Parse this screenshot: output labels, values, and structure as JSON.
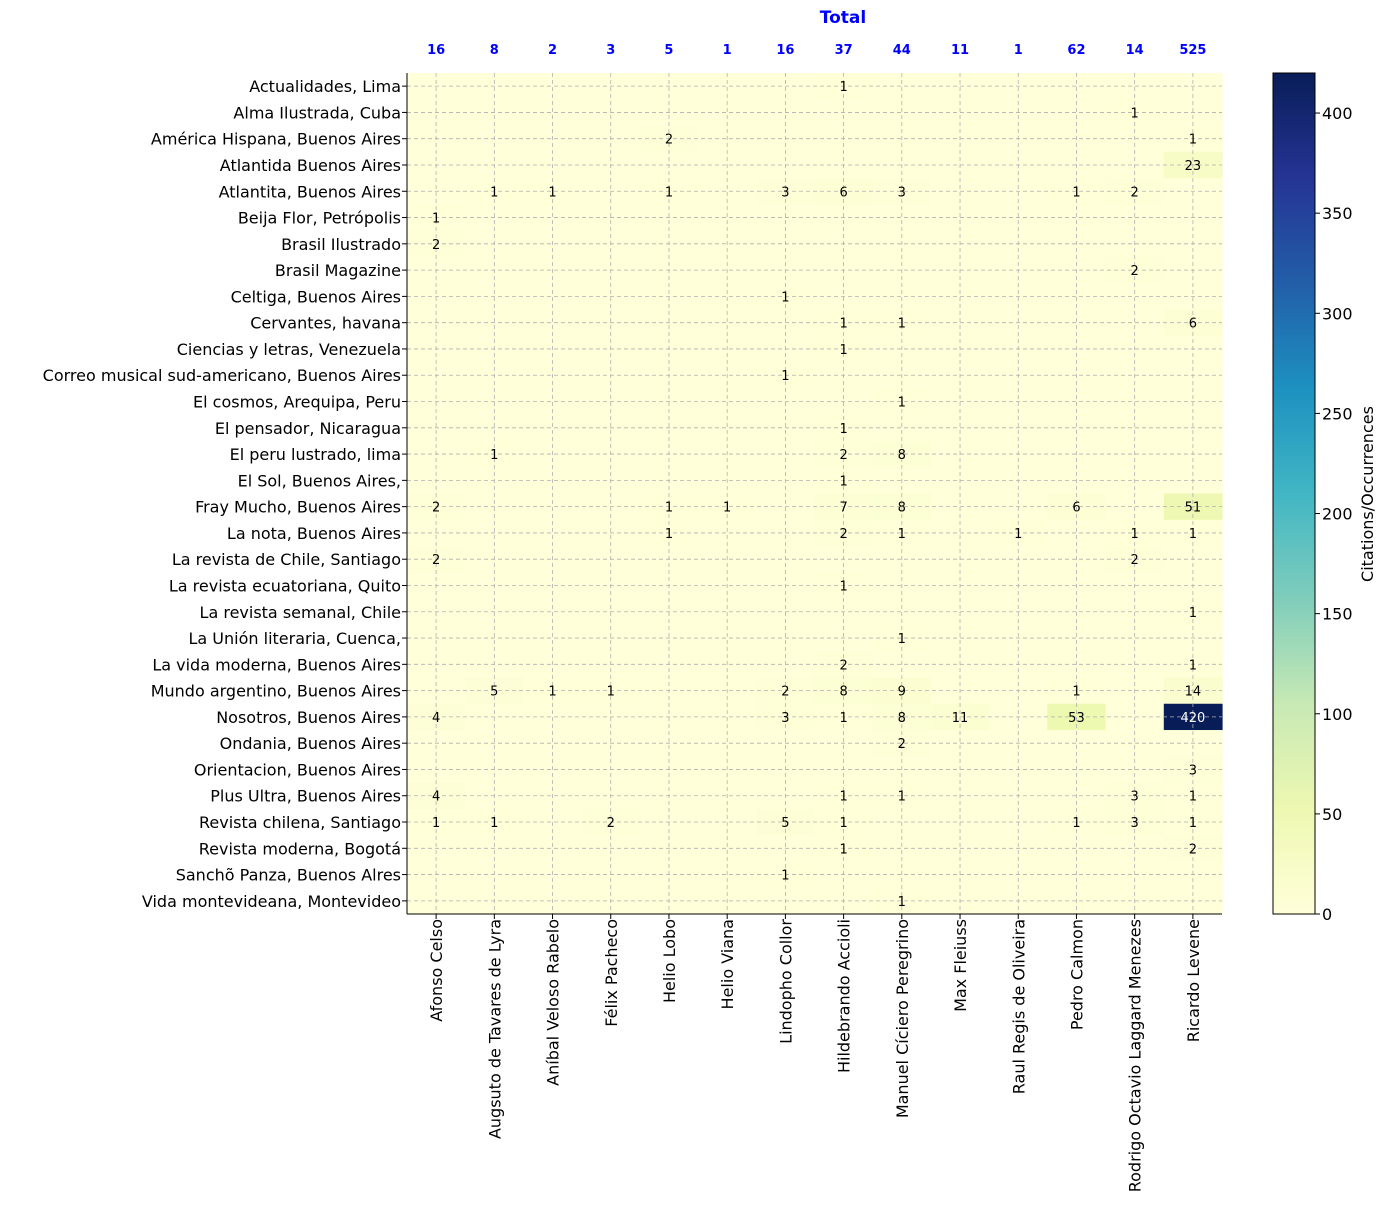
{
  "chart_data": {
    "type": "heatmap",
    "totals_title": "Total",
    "colorbar_label": "Citations/Occurrences",
    "colorbar_ticks": [
      0,
      50,
      100,
      150,
      200,
      250,
      300,
      350,
      400
    ],
    "colorbar_range": [
      0,
      420
    ],
    "colormap": "YlGnBu",
    "grid": true,
    "x_categories": [
      "Afonso Celso",
      "Augsuto de Tavares de Lyra",
      "Aníbal Veloso Rabelo",
      "Félix Pacheco",
      "Helio Lobo",
      "Helio Viana",
      "Lindopho Collor",
      "Hildebrando Accioli",
      "Manuel Cíciero Peregrino",
      "Max Fleiuss",
      "Raul Regis de Oliveira",
      "Pedro Calmon",
      "Rodrigo Octavio Laggard Menezes",
      "Ricardo Levene"
    ],
    "column_totals": [
      16,
      8,
      2,
      3,
      5,
      1,
      16,
      37,
      44,
      11,
      1,
      62,
      14,
      525
    ],
    "y_categories": [
      "Actualidades, Lima",
      "Alma Ilustrada, Cuba",
      "América Hispana, Buenos Aires",
      "Atlantida Buenos Aires",
      "Atlantita, Buenos Aires",
      "Beija Flor, Petrópolis",
      "Brasil Ilustrado",
      "Brasil Magazine",
      "Celtiga, Buenos Aires",
      "Cervantes, havana",
      "Ciencias y letras, Venezuela",
      "Correo musical sud-americano, Buenos Aires",
      "El cosmos, Arequipa, Peru",
      "El pensador, Nicaragua",
      "El peru lustrado, lima",
      "El Sol, Buenos Aires,",
      "Fray Mucho, Buenos Aires",
      "La nota, Buenos Aires",
      "La revista de Chile, Santiago",
      "La revista ecuatoriana, Quito",
      "La revista semanal, Chile",
      "La Unión literaria, Cuenca,",
      "La vida moderna, Buenos Aires",
      "Mundo argentino, Buenos Aires",
      "Nosotros, Buenos Aires",
      "Ondania, Buenos Aires",
      "Orientacion, Buenos Aires",
      "Plus Ultra, Buenos Aires",
      "Revista chilena, Santiago",
      "Revista moderna, Bogotá",
      "Sanchõ Panza, Buenos Alres",
      "Vida montevideana, Montevideo"
    ],
    "values": [
      [
        0,
        0,
        0,
        0,
        0,
        0,
        0,
        1,
        0,
        0,
        0,
        0,
        0,
        0
      ],
      [
        0,
        0,
        0,
        0,
        0,
        0,
        0,
        0,
        0,
        0,
        0,
        0,
        1,
        0
      ],
      [
        0,
        0,
        0,
        0,
        2,
        0,
        0,
        0,
        0,
        0,
        0,
        0,
        0,
        1
      ],
      [
        0,
        0,
        0,
        0,
        0,
        0,
        0,
        0,
        0,
        0,
        0,
        0,
        0,
        23
      ],
      [
        0,
        1,
        1,
        0,
        1,
        0,
        3,
        6,
        3,
        0,
        0,
        1,
        2,
        0
      ],
      [
        1,
        0,
        0,
        0,
        0,
        0,
        0,
        0,
        0,
        0,
        0,
        0,
        0,
        0
      ],
      [
        2,
        0,
        0,
        0,
        0,
        0,
        0,
        0,
        0,
        0,
        0,
        0,
        0,
        0
      ],
      [
        0,
        0,
        0,
        0,
        0,
        0,
        0,
        0,
        0,
        0,
        0,
        0,
        2,
        0
      ],
      [
        0,
        0,
        0,
        0,
        0,
        0,
        1,
        0,
        0,
        0,
        0,
        0,
        0,
        0
      ],
      [
        0,
        0,
        0,
        0,
        0,
        0,
        0,
        1,
        1,
        0,
        0,
        0,
        0,
        6
      ],
      [
        0,
        0,
        0,
        0,
        0,
        0,
        0,
        1,
        0,
        0,
        0,
        0,
        0,
        0
      ],
      [
        0,
        0,
        0,
        0,
        0,
        0,
        1,
        0,
        0,
        0,
        0,
        0,
        0,
        0
      ],
      [
        0,
        0,
        0,
        0,
        0,
        0,
        0,
        0,
        1,
        0,
        0,
        0,
        0,
        0
      ],
      [
        0,
        0,
        0,
        0,
        0,
        0,
        0,
        1,
        0,
        0,
        0,
        0,
        0,
        0
      ],
      [
        0,
        1,
        0,
        0,
        0,
        0,
        0,
        2,
        8,
        0,
        0,
        0,
        0,
        0
      ],
      [
        0,
        0,
        0,
        0,
        0,
        0,
        0,
        1,
        0,
        0,
        0,
        0,
        0,
        0
      ],
      [
        2,
        0,
        0,
        0,
        1,
        1,
        0,
        7,
        8,
        0,
        0,
        6,
        0,
        51
      ],
      [
        0,
        0,
        0,
        0,
        1,
        0,
        0,
        2,
        1,
        0,
        1,
        0,
        1,
        1
      ],
      [
        2,
        0,
        0,
        0,
        0,
        0,
        0,
        0,
        0,
        0,
        0,
        0,
        2,
        0
      ],
      [
        0,
        0,
        0,
        0,
        0,
        0,
        0,
        1,
        0,
        0,
        0,
        0,
        0,
        0
      ],
      [
        0,
        0,
        0,
        0,
        0,
        0,
        0,
        0,
        0,
        0,
        0,
        0,
        0,
        1
      ],
      [
        0,
        0,
        0,
        0,
        0,
        0,
        0,
        0,
        1,
        0,
        0,
        0,
        0,
        0
      ],
      [
        0,
        0,
        0,
        0,
        0,
        0,
        0,
        2,
        0,
        0,
        0,
        0,
        0,
        1
      ],
      [
        0,
        5,
        1,
        1,
        0,
        0,
        2,
        8,
        9,
        0,
        0,
        1,
        0,
        14
      ],
      [
        4,
        0,
        0,
        0,
        0,
        0,
        3,
        1,
        8,
        11,
        0,
        53,
        0,
        420
      ],
      [
        0,
        0,
        0,
        0,
        0,
        0,
        0,
        0,
        2,
        0,
        0,
        0,
        0,
        0
      ],
      [
        0,
        0,
        0,
        0,
        0,
        0,
        0,
        0,
        0,
        0,
        0,
        0,
        0,
        3
      ],
      [
        4,
        0,
        0,
        0,
        0,
        0,
        0,
        1,
        1,
        0,
        0,
        0,
        3,
        1
      ],
      [
        1,
        1,
        0,
        2,
        0,
        0,
        5,
        1,
        0,
        0,
        0,
        1,
        3,
        1
      ],
      [
        0,
        0,
        0,
        0,
        0,
        0,
        0,
        1,
        0,
        0,
        0,
        0,
        0,
        2
      ],
      [
        0,
        0,
        0,
        0,
        0,
        0,
        1,
        0,
        0,
        0,
        0,
        0,
        0,
        0
      ],
      [
        0,
        0,
        0,
        0,
        0,
        0,
        0,
        0,
        1,
        0,
        0,
        0,
        0,
        0
      ]
    ],
    "accent_color": "#0000ff"
  }
}
